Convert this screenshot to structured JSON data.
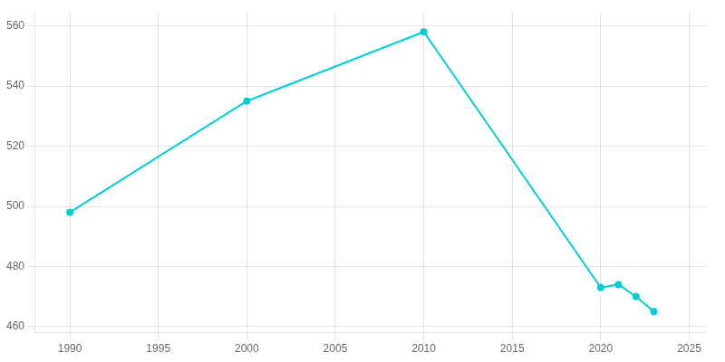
{
  "chart_data": {
    "type": "line",
    "x": [
      1990,
      2000,
      2010,
      2020,
      2021,
      2022,
      2023
    ],
    "values": [
      498,
      535,
      558,
      473,
      474,
      470,
      465
    ],
    "color": "#00CED1",
    "marker": "circle",
    "xlim": [
      1988,
      2026
    ],
    "xticks": [
      1990,
      1995,
      2000,
      2005,
      2010,
      2015,
      2020,
      2025
    ],
    "ylim": [
      458,
      565
    ],
    "yticks": [
      460,
      480,
      500,
      520,
      540,
      560
    ],
    "grid": true
  }
}
